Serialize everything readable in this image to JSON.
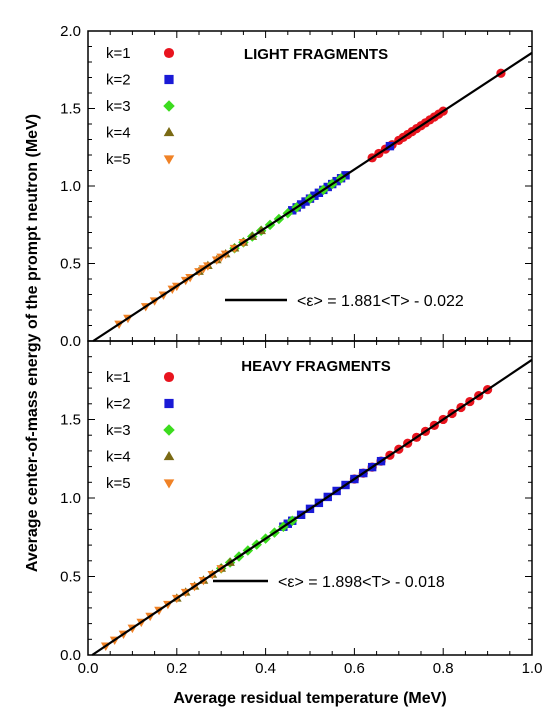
{
  "figure": {
    "ylabel": "Average center-of-mass energy of the prompt neutron (MeV)",
    "xlabel": "Average residual temperature (MeV)"
  },
  "chart_data": [
    {
      "type": "scatter",
      "title": "LIGHT FRAGMENTS",
      "xlim": [
        0.0,
        1.0
      ],
      "ylim": [
        0.0,
        2.0
      ],
      "xticks": [],
      "yticks": [
        "0.0",
        "0.5",
        "1.0",
        "1.5",
        "2.0"
      ],
      "legend_position": "top-left",
      "fit": {
        "label": "<ε> = 1.881<T> - 0.022",
        "slope": 1.881,
        "intercept": -0.022,
        "color": "#000000"
      },
      "series": [
        {
          "name": "k=1",
          "marker": "circle",
          "color": "#e8141e",
          "x": [
            0.64,
            0.655,
            0.67,
            0.685,
            0.7,
            0.71,
            0.72,
            0.73,
            0.74,
            0.75,
            0.76,
            0.77,
            0.78,
            0.79,
            0.8,
            0.93
          ]
        },
        {
          "name": "k=2",
          "marker": "square",
          "color": "#1a1ad6",
          "x": [
            0.46,
            0.47,
            0.48,
            0.49,
            0.5,
            0.51,
            0.52,
            0.53,
            0.54,
            0.55,
            0.56,
            0.57,
            0.58,
            0.68
          ]
        },
        {
          "name": "k=3",
          "marker": "diamond",
          "color": "#3cdc1e",
          "x": [
            0.33,
            0.35,
            0.37,
            0.39,
            0.41,
            0.43,
            0.45,
            0.47,
            0.5,
            0.53,
            0.55,
            0.57
          ]
        },
        {
          "name": "k=4",
          "marker": "triangle-up",
          "color": "#7a6a14",
          "x": [
            0.25,
            0.27,
            0.29,
            0.31,
            0.33,
            0.35,
            0.37,
            0.39
          ]
        },
        {
          "name": "k=5",
          "marker": "triangle-down",
          "color": "#f08226",
          "x": [
            0.07,
            0.09,
            0.13,
            0.15,
            0.17,
            0.19,
            0.2,
            0.22,
            0.23,
            0.25,
            0.26,
            0.27,
            0.29,
            0.3,
            0.31,
            0.33,
            0.35
          ]
        }
      ]
    },
    {
      "type": "scatter",
      "title": "HEAVY FRAGMENTS",
      "xlim": [
        0.0,
        1.0
      ],
      "ylim": [
        0.0,
        2.0
      ],
      "xticks": [
        "0.0",
        "0.2",
        "0.4",
        "0.6",
        "0.8",
        "1.0"
      ],
      "yticks": [
        "0.0",
        "0.5",
        "1.0",
        "1.5"
      ],
      "legend_position": "top-left",
      "fit": {
        "label": "<ε> = 1.898<T> - 0.018",
        "slope": 1.898,
        "intercept": -0.018,
        "color": "#000000"
      },
      "series": [
        {
          "name": "k=1",
          "marker": "circle",
          "color": "#e8141e",
          "x": [
            0.6,
            0.62,
            0.64,
            0.66,
            0.68,
            0.7,
            0.72,
            0.74,
            0.76,
            0.78,
            0.8,
            0.82,
            0.84,
            0.86,
            0.88,
            0.9
          ]
        },
        {
          "name": "k=2",
          "marker": "square",
          "color": "#1a1ad6",
          "x": [
            0.44,
            0.45,
            0.46,
            0.48,
            0.5,
            0.52,
            0.54,
            0.56,
            0.58,
            0.6,
            0.62,
            0.64,
            0.66
          ]
        },
        {
          "name": "k=3",
          "marker": "diamond",
          "color": "#3cdc1e",
          "x": [
            0.3,
            0.32,
            0.34,
            0.36,
            0.38,
            0.4,
            0.42,
            0.44,
            0.46
          ]
        },
        {
          "name": "k=4",
          "marker": "triangle-up",
          "color": "#7a6a14",
          "x": [
            0.2,
            0.22,
            0.24,
            0.26,
            0.28,
            0.3,
            0.32
          ]
        },
        {
          "name": "k=5",
          "marker": "triangle-down",
          "color": "#f08226",
          "x": [
            0.04,
            0.06,
            0.08,
            0.1,
            0.12,
            0.14,
            0.16,
            0.18,
            0.2,
            0.22,
            0.24,
            0.26,
            0.28,
            0.3
          ]
        }
      ]
    }
  ]
}
